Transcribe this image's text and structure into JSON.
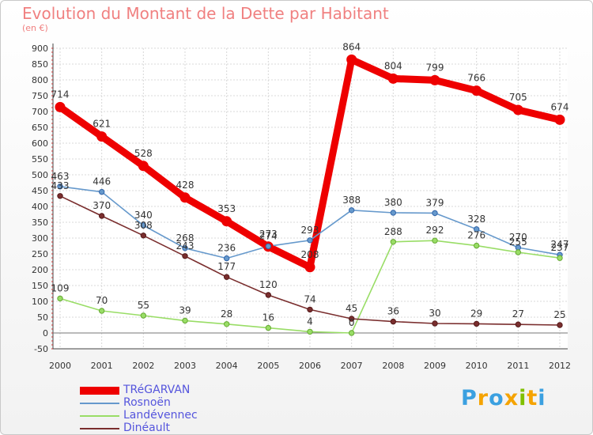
{
  "header": {
    "title": "Evolution du Montant de la Dette par Habitant",
    "subtitle": "(en €)"
  },
  "logo": {
    "letters": [
      "P",
      "r",
      "o",
      "x",
      "i",
      "t",
      "i"
    ],
    "colors": [
      "#3ba0e0",
      "#f5a300",
      "#3ba0e0",
      "#f5a300",
      "#80c000",
      "#f5a300",
      "#3ba0e0"
    ]
  },
  "chart_data": {
    "type": "line",
    "title": "Evolution du Montant de la Dette par Habitant",
    "ylabel": "(en €)",
    "xlabel": "",
    "categories": [
      "2000",
      "2001",
      "2002",
      "2003",
      "2004",
      "2005",
      "2006",
      "2007",
      "2008",
      "2009",
      "2010",
      "2011",
      "2012"
    ],
    "ylim": [
      -50,
      900
    ],
    "yticks": [
      "-50",
      "0",
      "50",
      "100",
      "150",
      "200",
      "250",
      "300",
      "350",
      "400",
      "450",
      "500",
      "550",
      "600",
      "650",
      "700",
      "750",
      "800",
      "850",
      "900"
    ],
    "grid": true,
    "legend_position": "bottom-left",
    "series": [
      {
        "name": "TRéGARVAN",
        "color": "#ee0000",
        "values": [
          714,
          621,
          528,
          428,
          353,
          273,
          208,
          864,
          804,
          799,
          766,
          705,
          674
        ],
        "labels": [
          "714",
          "621",
          "528",
          "428",
          "353",
          "273",
          "208",
          "864",
          "804",
          "799",
          "766",
          "705",
          "674"
        ]
      },
      {
        "name": "Rosnoën",
        "color": "#6699cc",
        "values": [
          463,
          446,
          340,
          268,
          236,
          274,
          293,
          388,
          380,
          379,
          328,
          270,
          247
        ],
        "labels": [
          "463",
          "446",
          "340",
          "268",
          "236",
          "274",
          "293",
          "388",
          "380",
          "379",
          "328",
          "270",
          "247"
        ]
      },
      {
        "name": "Landévennec",
        "color": "#99dd66",
        "values": [
          109,
          70,
          55,
          39,
          28,
          16,
          4,
          0,
          288,
          292,
          276,
          255,
          237
        ],
        "labels": [
          "109",
          "70",
          "55",
          "39",
          "28",
          "16",
          "4",
          "0",
          "288",
          "292",
          "276",
          "255",
          "237"
        ]
      },
      {
        "name": "Dinéault",
        "color": "#7a2e2e",
        "values": [
          433,
          370,
          308,
          243,
          177,
          120,
          74,
          45,
          36,
          30,
          29,
          27,
          25
        ],
        "labels": [
          "433",
          "370",
          "308",
          "243",
          "177",
          "120",
          "74",
          "45",
          "36",
          "30",
          "29",
          "27",
          "25"
        ]
      }
    ]
  }
}
